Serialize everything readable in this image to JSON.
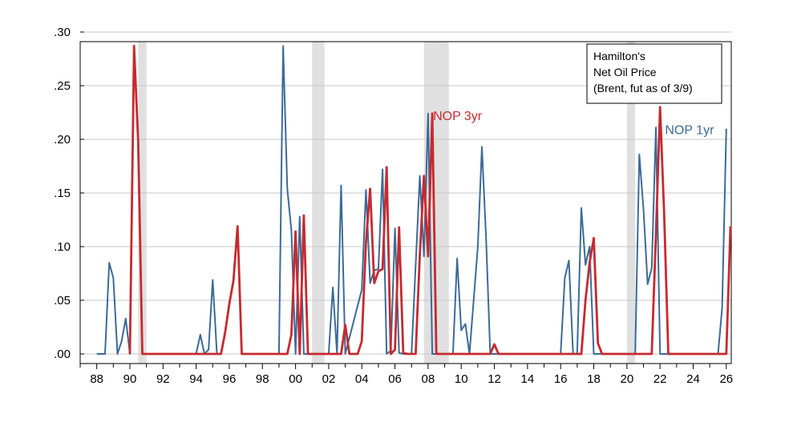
{
  "chart_data": {
    "type": "line",
    "title": "",
    "xlabel": "",
    "ylabel": "",
    "xlim": [
      1987.0,
      2026.3
    ],
    "ylim": [
      0.0,
      0.3
    ],
    "yticks": [
      {
        "value": 0.0,
        "label": ".00"
      },
      {
        "value": 0.05,
        "label": ".05"
      },
      {
        "value": 0.1,
        "label": ".10"
      },
      {
        "value": 0.15,
        "label": ".15"
      },
      {
        "value": 0.2,
        "label": ".20"
      },
      {
        "value": 0.25,
        "label": ".25"
      },
      {
        "value": 0.3,
        "label": ".30"
      }
    ],
    "xticks": [
      {
        "value": 1988,
        "label": "88"
      },
      {
        "value": 1990,
        "label": "90"
      },
      {
        "value": 1992,
        "label": "92"
      },
      {
        "value": 1994,
        "label": "94"
      },
      {
        "value": 1996,
        "label": "96"
      },
      {
        "value": 1998,
        "label": "98"
      },
      {
        "value": 2000,
        "label": "00"
      },
      {
        "value": 2002,
        "label": "02"
      },
      {
        "value": 2004,
        "label": "04"
      },
      {
        "value": 2006,
        "label": "06"
      },
      {
        "value": 2008,
        "label": "08"
      },
      {
        "value": 2010,
        "label": "10"
      },
      {
        "value": 2012,
        "label": "12"
      },
      {
        "value": 2014,
        "label": "14"
      },
      {
        "value": 2016,
        "label": "16"
      },
      {
        "value": 2018,
        "label": "18"
      },
      {
        "value": 2020,
        "label": "20"
      },
      {
        "value": 2022,
        "label": "22"
      },
      {
        "value": 2024,
        "label": "24"
      },
      {
        "value": 2026,
        "label": "26"
      }
    ],
    "grid": true,
    "recessions": [
      [
        1990.5,
        1991.0
      ],
      [
        2001.0,
        2001.75
      ],
      [
        2007.75,
        2009.25
      ],
      [
        2020.0,
        2020.5
      ]
    ],
    "legend_text": {
      "line1": "Hamilton's",
      "line2": "Net Oil Price",
      "line3": "(Brent, fut as of 3/9)"
    },
    "legend_position": "top-right",
    "series": [
      {
        "name": "NOP 1yr",
        "color": "#3d6a98",
        "label_at": [
          2022.3,
          0.205
        ],
        "points": [
          [
            1988.0,
            0.0
          ],
          [
            1988.5,
            0.0
          ],
          [
            1988.75,
            0.085
          ],
          [
            1989.0,
            0.071
          ],
          [
            1989.25,
            0.0
          ],
          [
            1989.5,
            0.012
          ],
          [
            1989.75,
            0.033
          ],
          [
            1990.0,
            0.0
          ],
          [
            1990.25,
            0.284
          ],
          [
            1990.5,
            0.2
          ],
          [
            1990.75,
            0.0
          ],
          [
            1994.0,
            0.0
          ],
          [
            1994.25,
            0.018
          ],
          [
            1994.5,
            0.0
          ],
          [
            1994.75,
            0.004
          ],
          [
            1995.0,
            0.069
          ],
          [
            1995.25,
            0.0
          ],
          [
            1995.5,
            0.0
          ],
          [
            1995.75,
            0.02
          ],
          [
            1996.0,
            0.045
          ],
          [
            1996.25,
            0.069
          ],
          [
            1996.5,
            0.118
          ],
          [
            1996.75,
            0.0
          ],
          [
            1999.0,
            0.0
          ],
          [
            1999.25,
            0.287
          ],
          [
            1999.5,
            0.154
          ],
          [
            1999.75,
            0.115
          ],
          [
            2000.0,
            0.0
          ],
          [
            2000.25,
            0.128
          ],
          [
            2000.5,
            0.0
          ],
          [
            2002.0,
            0.0
          ],
          [
            2002.25,
            0.062
          ],
          [
            2002.5,
            0.0
          ],
          [
            2002.75,
            0.157
          ],
          [
            2003.0,
            0.0
          ],
          [
            2004.0,
            0.06
          ],
          [
            2004.25,
            0.153
          ],
          [
            2004.5,
            0.066
          ],
          [
            2004.75,
            0.078
          ],
          [
            2005.0,
            0.079
          ],
          [
            2005.25,
            0.172
          ],
          [
            2005.5,
            0.0
          ],
          [
            2005.75,
            0.003
          ],
          [
            2006.0,
            0.117
          ],
          [
            2006.25,
            0.001
          ],
          [
            2006.5,
            0.0
          ],
          [
            2007.0,
            0.0
          ],
          [
            2007.5,
            0.166
          ],
          [
            2007.75,
            0.091
          ],
          [
            2008.0,
            0.224
          ],
          [
            2008.25,
            0.0
          ],
          [
            2009.0,
            0.0
          ],
          [
            2009.5,
            0.0
          ],
          [
            2009.75,
            0.089
          ],
          [
            2010.0,
            0.022
          ],
          [
            2010.25,
            0.028
          ],
          [
            2010.5,
            0.0
          ],
          [
            2011.0,
            0.1
          ],
          [
            2011.25,
            0.193
          ],
          [
            2011.5,
            0.108
          ],
          [
            2011.75,
            0.0
          ],
          [
            2012.5,
            0.0
          ],
          [
            2016.0,
            0.0
          ],
          [
            2016.25,
            0.071
          ],
          [
            2016.5,
            0.087
          ],
          [
            2016.75,
            0.0
          ],
          [
            2017.0,
            0.0
          ],
          [
            2017.25,
            0.136
          ],
          [
            2017.5,
            0.083
          ],
          [
            2017.75,
            0.1
          ],
          [
            2018.0,
            0.0
          ],
          [
            2020.5,
            0.0
          ],
          [
            2020.75,
            0.186
          ],
          [
            2021.0,
            0.135
          ],
          [
            2021.25,
            0.065
          ],
          [
            2021.5,
            0.08
          ],
          [
            2021.75,
            0.211
          ],
          [
            2022.0,
            0.0
          ],
          [
            2025.5,
            0.0
          ],
          [
            2025.75,
            0.043
          ],
          [
            2026.0,
            0.21
          ]
        ]
      },
      {
        "name": "NOP 3yr",
        "color": "#c62a2f",
        "label_at": [
          2008.3,
          0.218
        ],
        "points": [
          [
            1990.0,
            0.0
          ],
          [
            1990.25,
            0.287
          ],
          [
            1990.5,
            0.198
          ],
          [
            1990.75,
            0.0
          ],
          [
            1995.5,
            0.0
          ],
          [
            1995.75,
            0.02
          ],
          [
            1996.0,
            0.047
          ],
          [
            1996.25,
            0.068
          ],
          [
            1996.5,
            0.119
          ],
          [
            1996.75,
            0.0
          ],
          [
            1999.5,
            0.0
          ],
          [
            1999.75,
            0.018
          ],
          [
            2000.0,
            0.114
          ],
          [
            2000.25,
            0.0
          ],
          [
            2000.5,
            0.129
          ],
          [
            2000.75,
            0.0
          ],
          [
            2002.75,
            0.0
          ],
          [
            2003.0,
            0.027
          ],
          [
            2003.25,
            0.0
          ],
          [
            2003.75,
            0.0
          ],
          [
            2004.0,
            0.012
          ],
          [
            2004.25,
            0.104
          ],
          [
            2004.5,
            0.154
          ],
          [
            2004.75,
            0.066
          ],
          [
            2005.0,
            0.077
          ],
          [
            2005.25,
            0.079
          ],
          [
            2005.5,
            0.174
          ],
          [
            2005.75,
            0.0
          ],
          [
            2006.0,
            0.004
          ],
          [
            2006.25,
            0.118
          ],
          [
            2006.5,
            0.001
          ],
          [
            2006.75,
            0.0
          ],
          [
            2007.25,
            0.0
          ],
          [
            2007.5,
            0.093
          ],
          [
            2007.75,
            0.166
          ],
          [
            2008.0,
            0.091
          ],
          [
            2008.25,
            0.224
          ],
          [
            2008.5,
            0.0
          ],
          [
            2011.75,
            0.0
          ],
          [
            2012.0,
            0.009
          ],
          [
            2012.25,
            0.0
          ],
          [
            2017.25,
            0.0
          ],
          [
            2017.5,
            0.05
          ],
          [
            2017.75,
            0.085
          ],
          [
            2018.0,
            0.108
          ],
          [
            2018.25,
            0.01
          ],
          [
            2018.5,
            0.0
          ],
          [
            2020.75,
            0.0
          ],
          [
            2021.5,
            0.0
          ],
          [
            2021.75,
            0.111
          ],
          [
            2022.0,
            0.23
          ],
          [
            2022.25,
            0.13
          ],
          [
            2022.5,
            0.0
          ],
          [
            2025.75,
            0.0
          ],
          [
            2026.0,
            0.0
          ],
          [
            2026.25,
            0.119
          ]
        ]
      }
    ]
  }
}
